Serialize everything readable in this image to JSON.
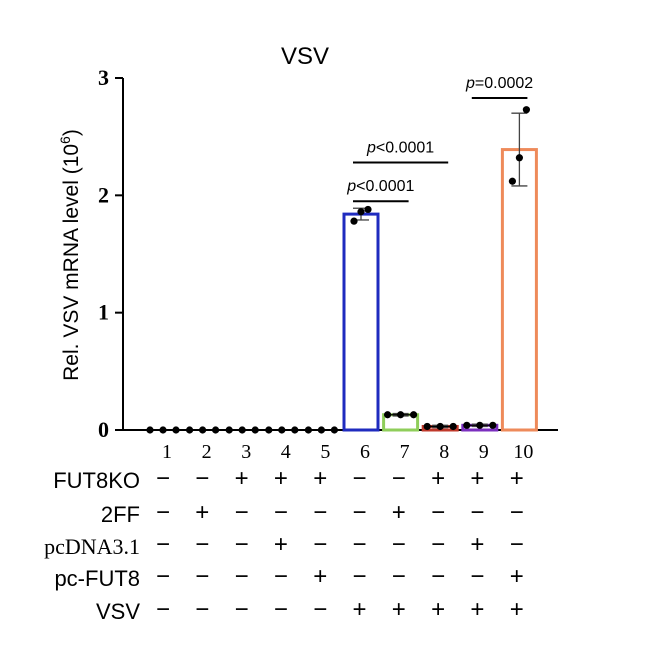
{
  "chart_data": {
    "type": "bar",
    "title": "VSV",
    "ylabel": "Rel. VSV mRNA level (10",
    "ylabel_sup": "6",
    "ylabel_close": ")",
    "ylim": [
      0,
      3
    ],
    "yticks": [
      "0",
      "1",
      "2",
      "3"
    ],
    "categories": [
      "1",
      "2",
      "3",
      "4",
      "5",
      "6",
      "7",
      "8",
      "9",
      "10"
    ],
    "values": [
      0.0,
      0.0,
      0.0,
      0.0,
      0.0,
      1.84,
      0.13,
      0.03,
      0.04,
      2.39
    ],
    "error": [
      0.0,
      0.0,
      0.0,
      0.0,
      0.0,
      0.05,
      0.01,
      0.01,
      0.01,
      0.31
    ],
    "points": [
      [
        0.0,
        0.0,
        0.0
      ],
      [
        0.0,
        0.0,
        0.0
      ],
      [
        0.0,
        0.0,
        0.0
      ],
      [
        0.0,
        0.0,
        0.0
      ],
      [
        0.0,
        0.0,
        0.0
      ],
      [
        1.78,
        1.86,
        1.88
      ],
      [
        0.13,
        0.13,
        0.13
      ],
      [
        0.03,
        0.03,
        0.03
      ],
      [
        0.04,
        0.04,
        0.04
      ],
      [
        2.12,
        2.32,
        2.73
      ]
    ],
    "bar_colors": [
      "#000000",
      "#000000",
      "#000000",
      "#000000",
      "#000000",
      "#1f2bbf",
      "#8fce5a",
      "#c0392b",
      "#7b2fbf",
      "#ee8a5a"
    ],
    "comparisons": [
      {
        "from": "6",
        "to": "7",
        "label": "p<0.0001",
        "y": 1.95
      },
      {
        "from": "6",
        "to": "8",
        "label": "p<0.0001",
        "y": 2.28
      },
      {
        "from": "9",
        "to": "10",
        "label": "p=0.0002",
        "y": 2.83
      }
    ],
    "conditions": [
      {
        "name": "FUT8KO",
        "font": "sans",
        "signs": [
          "−",
          "−",
          "+",
          "+",
          "+",
          "−",
          "−",
          "+",
          "+",
          "+"
        ]
      },
      {
        "name": "2FF",
        "font": "sans",
        "signs": [
          "−",
          "+",
          "−",
          "−",
          "−",
          "−",
          "+",
          "−",
          "−",
          "−"
        ]
      },
      {
        "name": "pcDNA3.1",
        "font": "serif",
        "signs": [
          "−",
          "−",
          "−",
          "+",
          "−",
          "−",
          "−",
          "−",
          "+",
          "−"
        ]
      },
      {
        "name": "pc-FUT8",
        "font": "sans",
        "signs": [
          "−",
          "−",
          "−",
          "−",
          "+",
          "−",
          "−",
          "−",
          "−",
          "+"
        ]
      },
      {
        "name": "VSV",
        "font": "sans",
        "signs": [
          "−",
          "−",
          "−",
          "−",
          "−",
          "+",
          "+",
          "+",
          "+",
          "+"
        ]
      }
    ]
  }
}
